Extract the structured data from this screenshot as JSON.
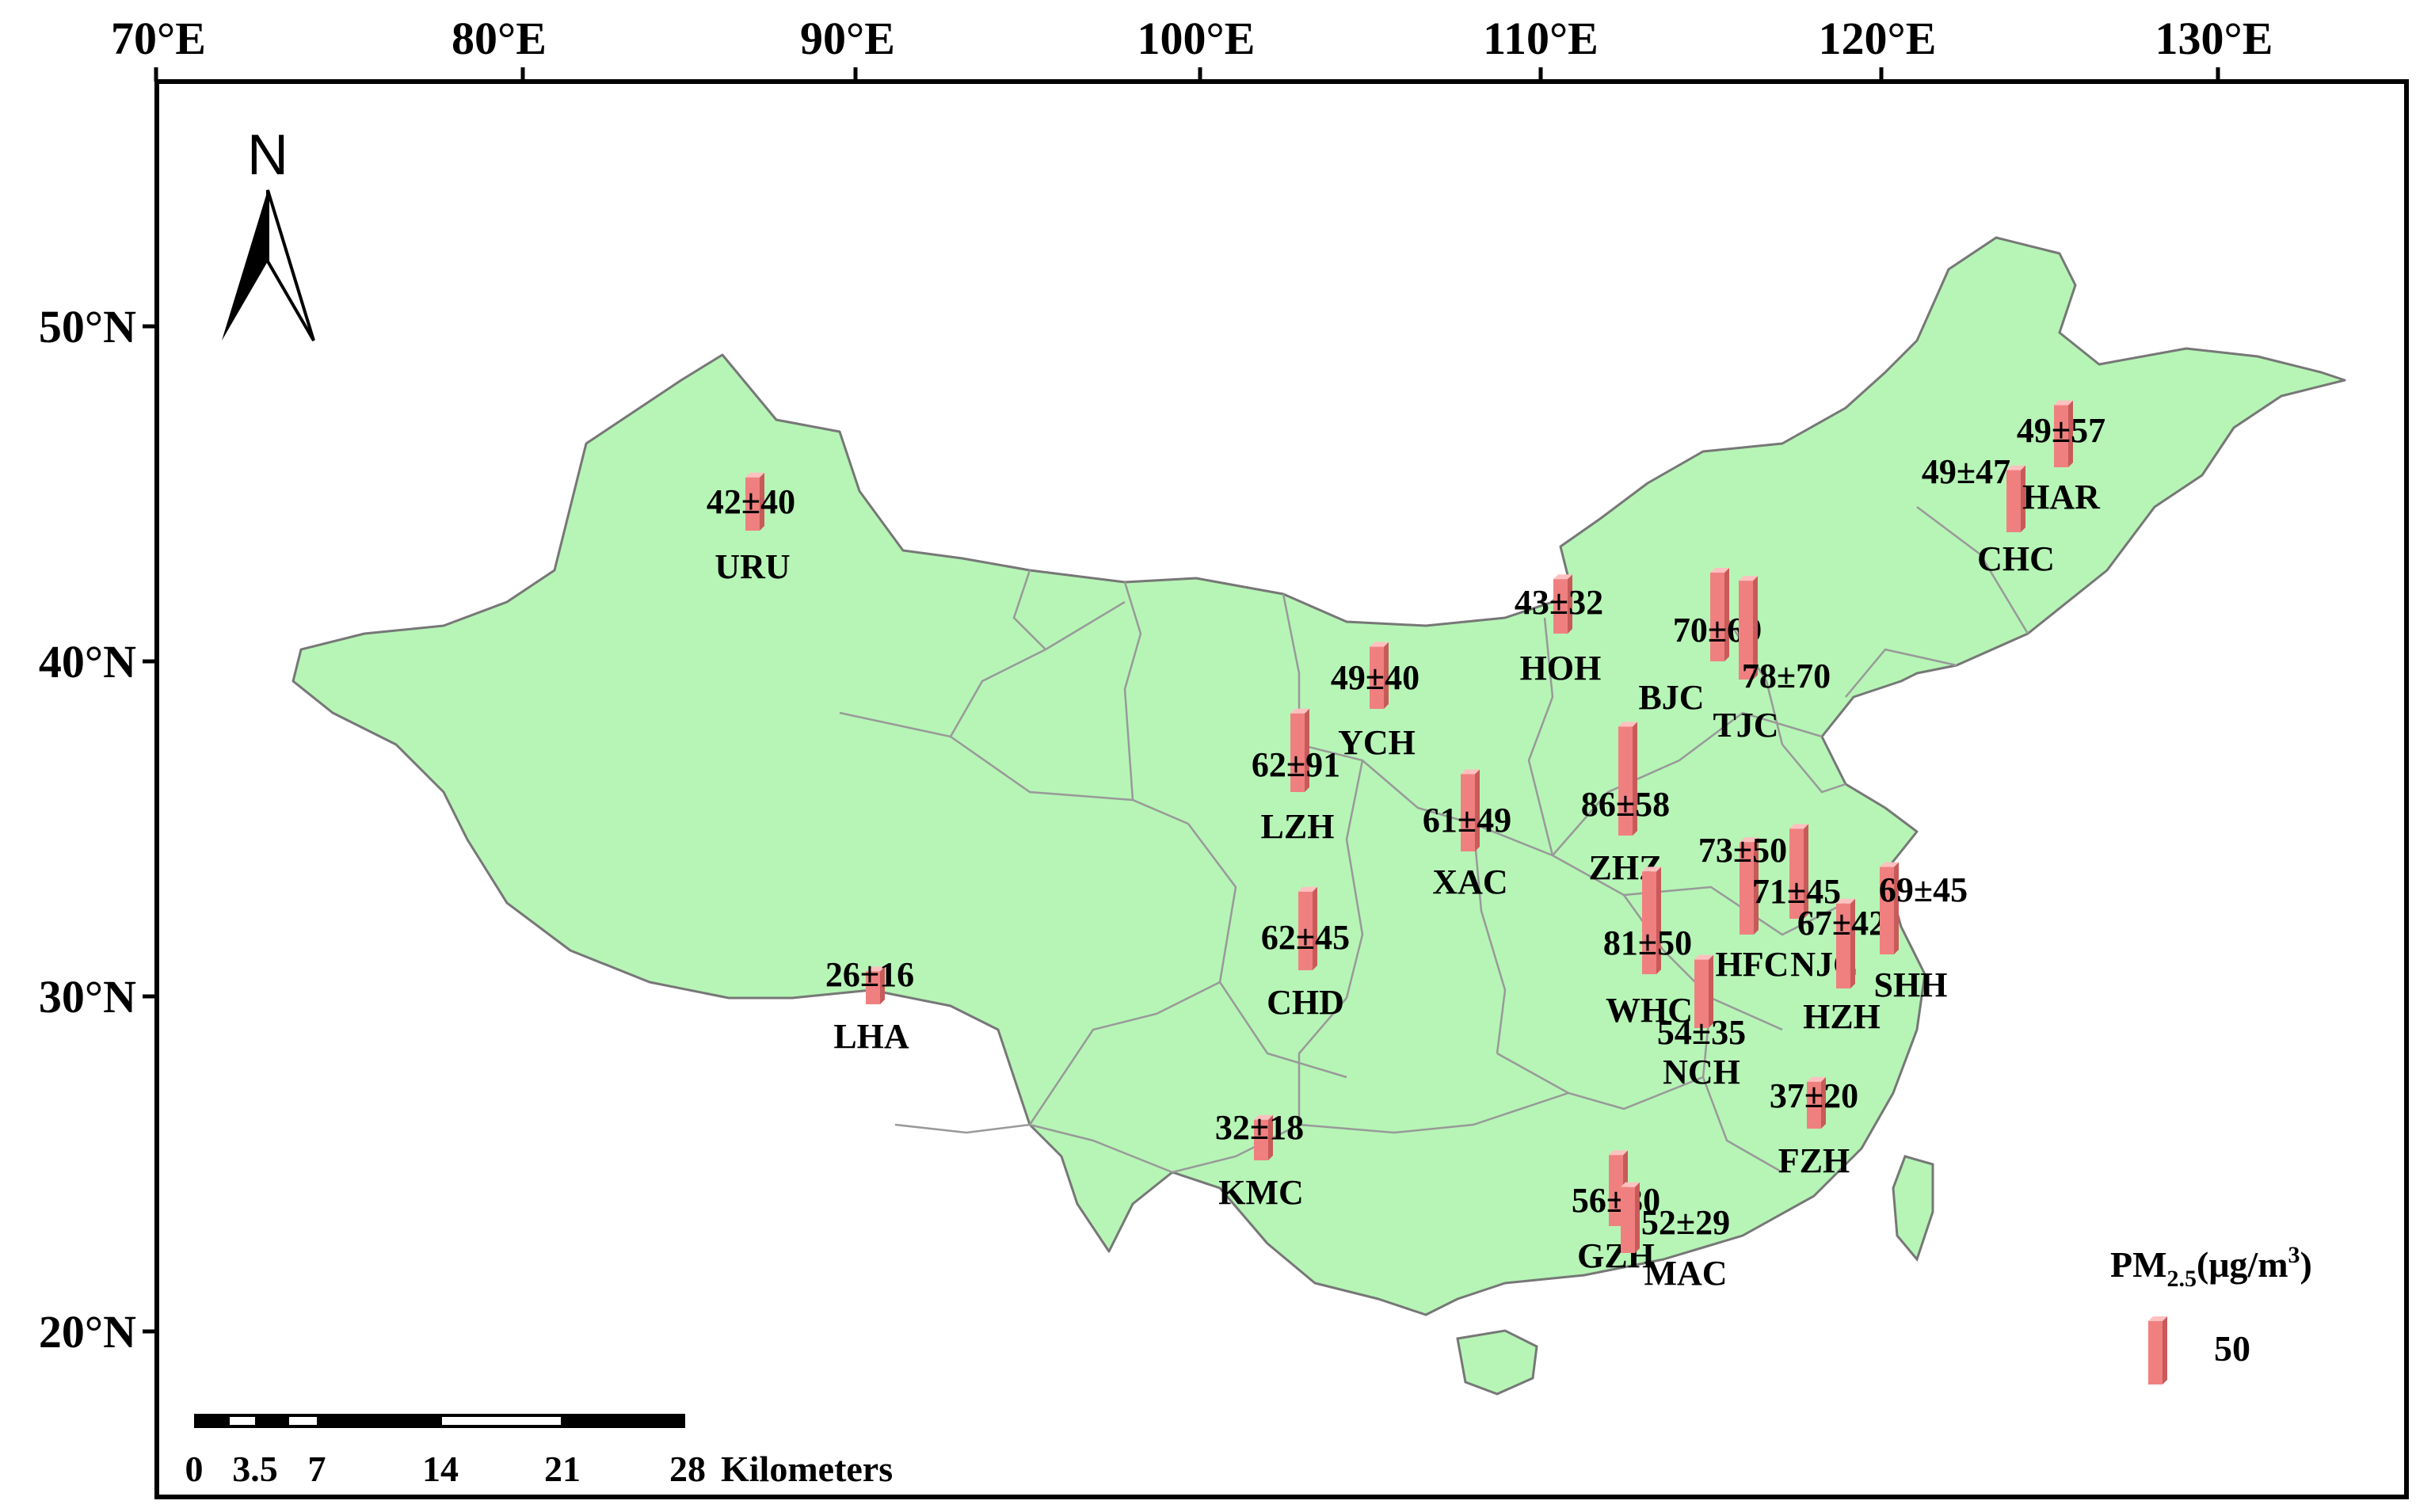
{
  "axes": {
    "longitude_labels": [
      "70°E",
      "80°E",
      "90°E",
      "100°E",
      "110°E",
      "120°E",
      "130°E"
    ],
    "latitude_labels": [
      "50°N",
      "40°N",
      "30°N",
      "20°N"
    ]
  },
  "north_arrow": {
    "label": "N",
    "icon": "north-arrow-icon"
  },
  "legend": {
    "title_main": "PM",
    "title_sub": "2.5",
    "title_rest": "(μg/m",
    "title_sup": "3",
    "title_close": ")",
    "value_label": "50",
    "value": 50
  },
  "scale_bar": {
    "tick_labels": [
      "0",
      "3.5",
      "7",
      "14",
      "21",
      "28"
    ],
    "unit": "Kilometers"
  },
  "colors": {
    "land": "#b6f5b6",
    "border": "#888888",
    "bar": "#f08080",
    "bar_dark": "#c85a5a",
    "bar_light": "#ffc0c0"
  },
  "cities": [
    {
      "code": "URU",
      "stat": "42±40",
      "mean": 42
    },
    {
      "code": "LHA",
      "stat": "26±16",
      "mean": 26
    },
    {
      "code": "KMC",
      "stat": "32±18",
      "mean": 32
    },
    {
      "code": "CHD",
      "stat": "62±45",
      "mean": 62
    },
    {
      "code": "LZH",
      "stat": "62±91",
      "mean": 62
    },
    {
      "code": "YCH",
      "stat": "49±40",
      "mean": 49
    },
    {
      "code": "XAC",
      "stat": "61±49",
      "mean": 61
    },
    {
      "code": "HOH",
      "stat": "43±32",
      "mean": 43
    },
    {
      "code": "BJC",
      "stat": "70±69",
      "mean": 70
    },
    {
      "code": "TJC",
      "stat": "78±70",
      "mean": 78
    },
    {
      "code": "ZHZ",
      "stat": "86±58",
      "mean": 86
    },
    {
      "code": "WHC",
      "stat": "81±50",
      "mean": 81
    },
    {
      "code": "NCH",
      "stat": "54±35",
      "mean": 54
    },
    {
      "code": "HFC",
      "stat": "73±50",
      "mean": 73
    },
    {
      "code": "NJC",
      "stat": "71±45",
      "mean": 71
    },
    {
      "code": "HZH",
      "stat": "67±42",
      "mean": 67
    },
    {
      "code": "SHH",
      "stat": "69±45",
      "mean": 69
    },
    {
      "code": "FZH",
      "stat": "37±20",
      "mean": 37
    },
    {
      "code": "GZH",
      "stat": "56±30",
      "mean": 56
    },
    {
      "code": "MAC",
      "stat": "52±29",
      "mean": 52
    },
    {
      "code": "CHC",
      "stat": "49±47",
      "mean": 49
    },
    {
      "code": "HAR",
      "stat": "49±57",
      "mean": 49
    }
  ]
}
